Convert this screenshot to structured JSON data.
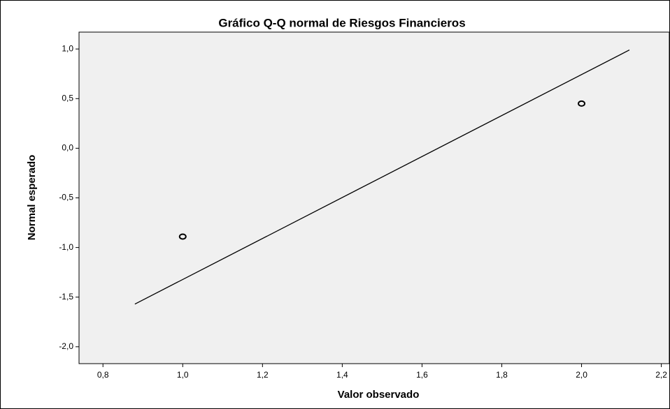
{
  "chart_data": {
    "type": "scatter",
    "title": "Gráfico Q-Q normal de Riesgos Financieros",
    "x_label": "Valor observado",
    "y_label": "Normal esperado",
    "series": [
      {
        "mode": "markers",
        "color": "#000000",
        "x": [
          1.0,
          2.0
        ],
        "values": [
          -0.89,
          0.45
        ]
      },
      {
        "mode": "line",
        "color": "#000000",
        "x": [
          0.88,
          2.12
        ],
        "values": [
          -1.57,
          0.99
        ]
      }
    ],
    "xlim": [
      0.74,
      2.22
    ],
    "xticks": [
      {
        "value": 0.8,
        "label": "0,8"
      },
      {
        "value": 1.0,
        "label": "1,0"
      },
      {
        "value": 1.2,
        "label": "1,2"
      },
      {
        "value": 1.4,
        "label": "1,4"
      },
      {
        "value": 1.6,
        "label": "1,6"
      },
      {
        "value": 1.8,
        "label": "1,8"
      },
      {
        "value": 2.0,
        "label": "2,0"
      },
      {
        "value": 2.2,
        "label": "2,2"
      }
    ],
    "ylim": [
      -2.17,
      1.17
    ],
    "yticks": [
      {
        "value": 1.0,
        "label": "1,0"
      },
      {
        "value": 0.5,
        "label": "0,5"
      },
      {
        "value": 0.0,
        "label": "0,0"
      },
      {
        "value": -0.5,
        "label": "-0,5"
      },
      {
        "value": -1.0,
        "label": "-1,0"
      },
      {
        "value": -1.5,
        "label": "-1,5"
      },
      {
        "value": -2.0,
        "label": "-2,0"
      }
    ],
    "grid": false,
    "background": "#f0f0f0"
  }
}
